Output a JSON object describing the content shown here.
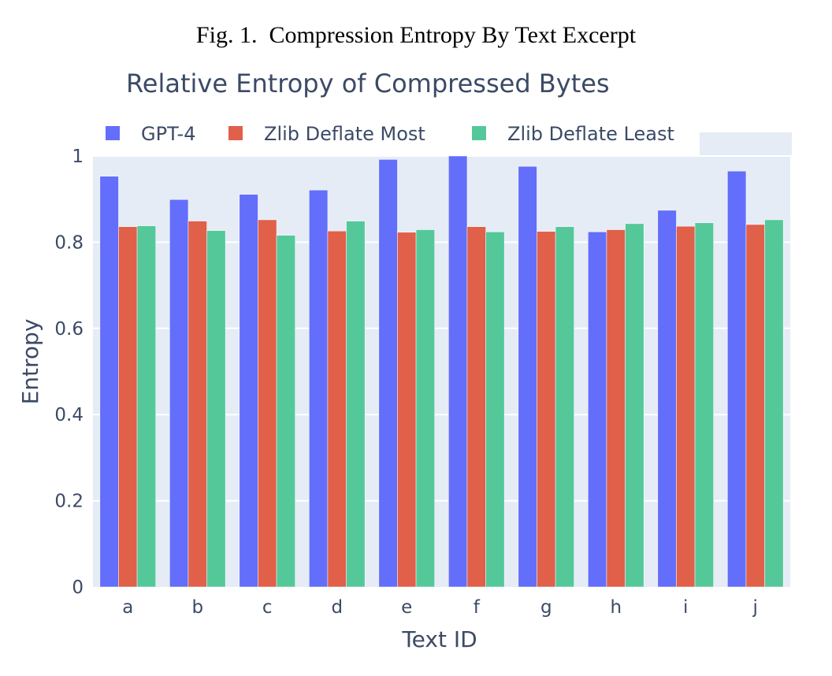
{
  "figure": {
    "caption": "Fig. 1.  Compression Entropy By Text Excerpt"
  },
  "chart_data": {
    "type": "bar",
    "title": "Relative Entropy of Compressed Bytes",
    "xlabel": "Text ID",
    "ylabel": "Entropy",
    "categories": [
      "a",
      "b",
      "c",
      "d",
      "e",
      "f",
      "g",
      "h",
      "i",
      "j"
    ],
    "ylim": [
      0,
      1
    ],
    "yticks": [
      0,
      0.2,
      0.4,
      0.6,
      0.8,
      1
    ],
    "ytick_labels": [
      "0",
      "0.2",
      "0.4",
      "0.6",
      "0.8",
      "1"
    ],
    "grid": true,
    "legend": "top, horizontal",
    "series": [
      {
        "name": "GPT-4",
        "color": "#636efa",
        "values": [
          0.953,
          0.899,
          0.911,
          0.921,
          0.992,
          1.0,
          0.976,
          0.824,
          0.874,
          0.965
        ]
      },
      {
        "name": "Zlib Deflate Most",
        "color": "#e0604a",
        "values": [
          0.836,
          0.849,
          0.852,
          0.826,
          0.823,
          0.836,
          0.825,
          0.829,
          0.837,
          0.841
        ]
      },
      {
        "name": "Zlib Deflate Least",
        "color": "#55c89a",
        "values": [
          0.838,
          0.827,
          0.816,
          0.849,
          0.829,
          0.824,
          0.836,
          0.843,
          0.845,
          0.852
        ]
      }
    ],
    "plot_bg": "#e5ecf6"
  }
}
